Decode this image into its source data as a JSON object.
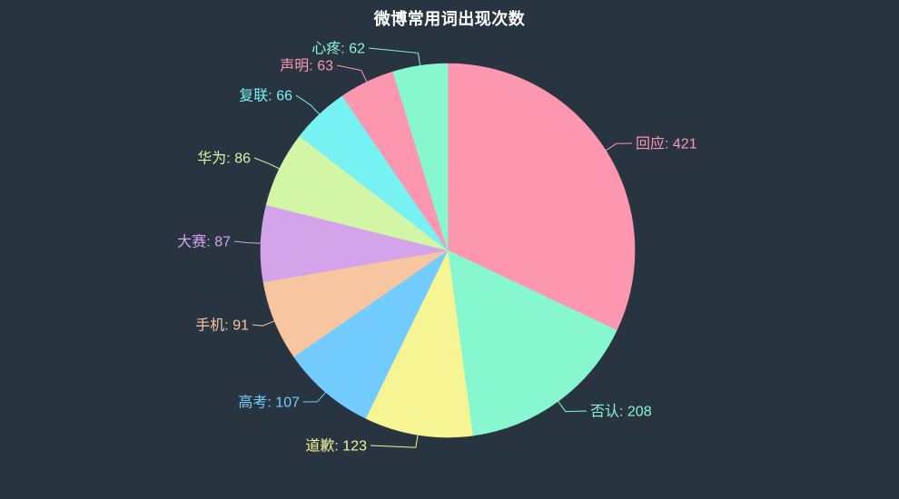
{
  "chart_data": {
    "type": "pie",
    "title": "微博常用词出现次数",
    "label_format": "{name}: {value}",
    "start_angle_deg": 90,
    "direction": "clockwise",
    "grid": false,
    "legend_position": "none",
    "background_color": "#293441",
    "title_color": "#ffffff",
    "items": [
      {
        "name": "回应",
        "value": 421,
        "color": "#fc97af"
      },
      {
        "name": "否认",
        "value": 208,
        "color": "#87f7cf"
      },
      {
        "name": "道歉",
        "value": 123,
        "color": "#f7f494"
      },
      {
        "name": "高考",
        "value": 107,
        "color": "#72ccff"
      },
      {
        "name": "手机",
        "value": 91,
        "color": "#f7c5a0"
      },
      {
        "name": "大赛",
        "value": 87,
        "color": "#d4a4eb"
      },
      {
        "name": "华为",
        "value": 86,
        "color": "#d2f5a6"
      },
      {
        "name": "复联",
        "value": 66,
        "color": "#76f2f2"
      },
      {
        "name": "声明",
        "value": 63,
        "color": "#fc97af"
      },
      {
        "name": "心疼",
        "value": 62,
        "color": "#87f7cf"
      }
    ]
  }
}
